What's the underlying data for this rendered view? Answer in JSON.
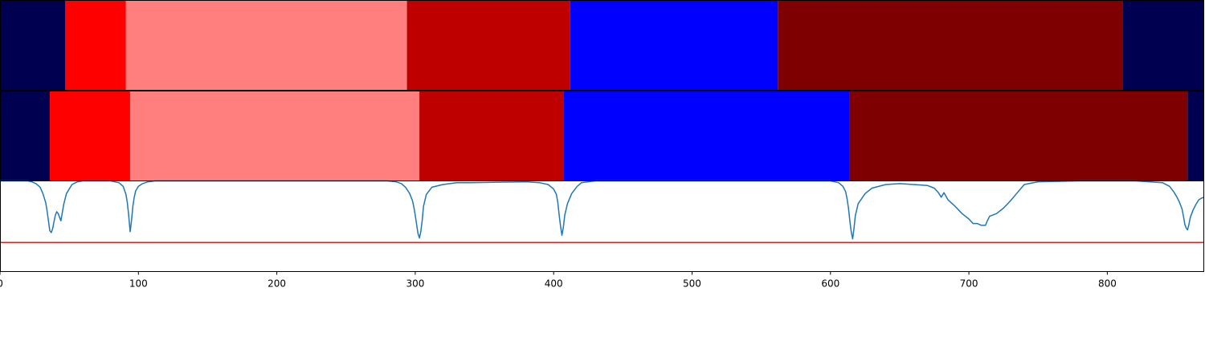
{
  "chart_data": [
    {
      "type": "table",
      "title": "",
      "x_range": [
        0,
        870
      ],
      "segments": [
        {
          "start": 0,
          "end": 47,
          "color": "#000050"
        },
        {
          "start": 47,
          "end": 91,
          "color": "#ff0000"
        },
        {
          "start": 91,
          "end": 294,
          "color": "#ff7f7f"
        },
        {
          "start": 294,
          "end": 412,
          "color": "#bf0000"
        },
        {
          "start": 412,
          "end": 562,
          "color": "#0000ff"
        },
        {
          "start": 562,
          "end": 811,
          "color": "#7f0000"
        },
        {
          "start": 811,
          "end": 870,
          "color": "#000050"
        }
      ]
    },
    {
      "type": "table",
      "title": "",
      "x_range": [
        0,
        870
      ],
      "segments": [
        {
          "start": 0,
          "end": 36,
          "color": "#000050"
        },
        {
          "start": 36,
          "end": 94,
          "color": "#ff0000"
        },
        {
          "start": 94,
          "end": 303,
          "color": "#ff7f7f"
        },
        {
          "start": 303,
          "end": 407,
          "color": "#bf0000"
        },
        {
          "start": 407,
          "end": 614,
          "color": "#0000ff"
        },
        {
          "start": 614,
          "end": 858,
          "color": "#7f0000"
        },
        {
          "start": 858,
          "end": 870,
          "color": "#000050"
        }
      ]
    },
    {
      "type": "line",
      "title": "",
      "xlabel": "",
      "ylabel": "",
      "xlim": [
        0,
        870
      ],
      "ylim": [
        0,
        1
      ],
      "grid": false,
      "series": [
        {
          "color": "#1f77b4",
          "x": [
            0,
            20,
            23,
            26,
            29,
            31,
            33,
            34,
            35,
            36,
            37,
            38,
            39,
            40,
            41,
            42,
            44,
            46,
            48,
            52,
            56,
            60,
            70,
            80,
            86,
            89,
            91,
            92,
            93,
            94,
            95,
            96,
            97,
            98,
            100,
            103,
            107,
            112,
            120,
            150,
            200,
            260,
            280,
            286,
            290,
            293,
            296,
            298,
            299,
            300,
            301,
            302,
            303,
            304,
            305,
            306,
            308,
            312,
            320,
            330,
            340,
            380,
            390,
            396,
            400,
            402,
            403,
            404,
            405,
            406,
            407,
            408,
            410,
            413,
            417,
            420,
            430,
            600,
            606,
            609,
            611,
            612,
            613,
            614,
            615,
            616,
            617,
            618,
            620,
            625,
            630,
            640,
            650,
            660,
            670,
            675,
            678,
            680,
            682,
            685,
            690,
            695,
            700,
            703,
            706,
            709,
            710,
            712,
            713,
            715,
            720,
            725,
            730,
            735,
            740,
            750,
            780,
            820,
            840,
            845,
            848,
            850,
            852,
            854,
            855,
            856,
            857,
            858,
            859,
            860,
            862,
            864,
            866,
            868,
            870
          ],
          "y": [
            1.0,
            1.0,
            0.99,
            0.97,
            0.93,
            0.86,
            0.76,
            0.67,
            0.56,
            0.45,
            0.43,
            0.47,
            0.55,
            0.62,
            0.66,
            0.64,
            0.56,
            0.74,
            0.86,
            0.96,
            0.99,
            1.0,
            1.0,
            1.0,
            0.98,
            0.94,
            0.85,
            0.76,
            0.62,
            0.44,
            0.56,
            0.72,
            0.82,
            0.89,
            0.94,
            0.97,
            0.99,
            1.0,
            1.0,
            1.0,
            1.0,
            1.0,
            1.0,
            0.99,
            0.97,
            0.93,
            0.86,
            0.78,
            0.71,
            0.62,
            0.52,
            0.42,
            0.37,
            0.44,
            0.56,
            0.72,
            0.85,
            0.93,
            0.96,
            0.98,
            0.98,
            0.99,
            0.98,
            0.96,
            0.91,
            0.85,
            0.76,
            0.62,
            0.5,
            0.4,
            0.49,
            0.62,
            0.75,
            0.86,
            0.94,
            0.98,
            1.0,
            1.0,
            0.98,
            0.94,
            0.88,
            0.8,
            0.7,
            0.56,
            0.44,
            0.36,
            0.48,
            0.62,
            0.75,
            0.86,
            0.92,
            0.96,
            0.97,
            0.96,
            0.95,
            0.92,
            0.87,
            0.82,
            0.87,
            0.79,
            0.72,
            0.64,
            0.58,
            0.53,
            0.53,
            0.51,
            0.51,
            0.51,
            0.55,
            0.61,
            0.64,
            0.7,
            0.78,
            0.87,
            0.96,
            0.99,
            1.0,
            1.0,
            0.98,
            0.94,
            0.88,
            0.83,
            0.77,
            0.69,
            0.61,
            0.52,
            0.48,
            0.46,
            0.52,
            0.6,
            0.68,
            0.74,
            0.79,
            0.81,
            0.82
          ]
        },
        {
          "color": "#d62728",
          "x": [
            0,
            870
          ],
          "y": [
            0.32,
            0.32
          ]
        }
      ]
    }
  ],
  "x_axis": {
    "ticks": [
      0,
      100,
      200,
      300,
      400,
      500,
      600,
      700,
      800
    ],
    "tick_labels": [
      "0",
      "100",
      "200",
      "300",
      "400",
      "500",
      "600",
      "700",
      "800"
    ]
  }
}
